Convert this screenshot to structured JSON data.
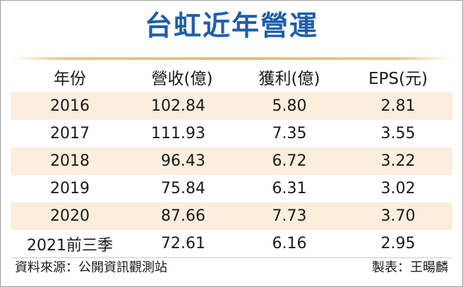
{
  "title": "台虹近年營運",
  "columns": [
    "年份",
    "營收(億)",
    "獲利(億)",
    "EPS(元)"
  ],
  "rows": [
    [
      "2016",
      "102.84",
      "5.80",
      "2.81"
    ],
    [
      "2017",
      "111.93",
      "7.35",
      "3.55"
    ],
    [
      "2018",
      "96.43",
      "6.72",
      "3.22"
    ],
    [
      "2019",
      "75.84",
      "6.31",
      "3.02"
    ],
    [
      "2020",
      "87.66",
      "7.73",
      "3.70"
    ],
    [
      "2021前三季",
      "72.61",
      "6.16",
      "2.95"
    ]
  ],
  "source": "資料來源：公開資訊觀測站",
  "maker": "製表：王暘麟",
  "colors": {
    "title": "#1f5fa8",
    "row_shade": "#fbeedd",
    "rule": "#e3bf78"
  }
}
